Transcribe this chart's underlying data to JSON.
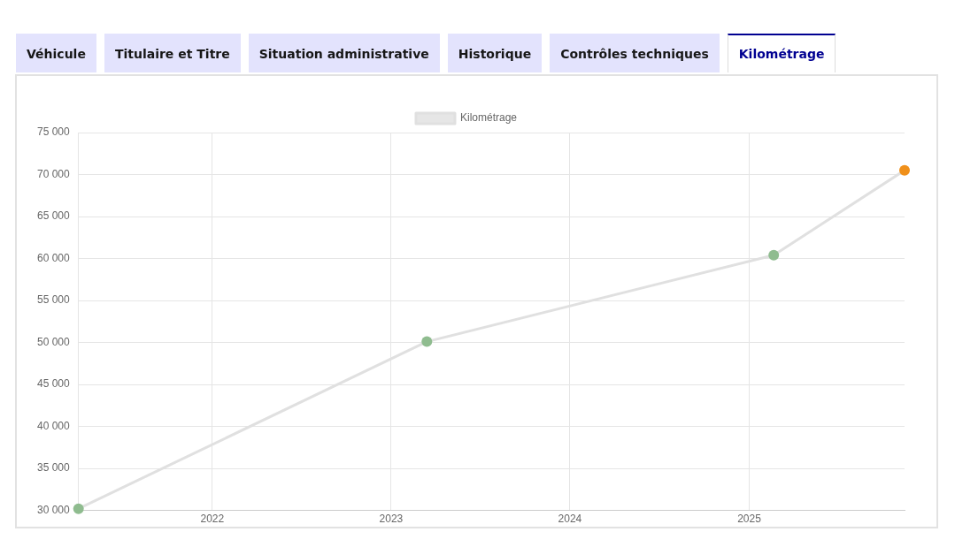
{
  "chart_data": {
    "type": "line",
    "annotations": [
      "Véhicule",
      "Titulaire et Titre",
      "Situation administrative",
      "Historique",
      "Contrôles techniques",
      "Kilométrage"
    ],
    "x": [
      "2021-04-03",
      "2023-03-15",
      "2025-02-20",
      "2025-11-14"
    ],
    "series": [
      {
        "name": "Kilométrage",
        "color": "#e0e0e0",
        "colors": [
          "#8fbc8f",
          "#8fbc8f",
          "#8fbc8f",
          "#f0901a"
        ],
        "values": [
          30200,
          50100,
          60400,
          70500
        ]
      }
    ],
    "xlim": [
      "2021-04-03",
      "2025-11-14"
    ],
    "xticks": [
      "2022",
      "2023",
      "2024",
      "2025"
    ],
    "ylim": [
      30000,
      75000
    ],
    "yticks": [
      {
        "value": 30000,
        "label": "30 000"
      },
      {
        "value": 35000,
        "label": "35 000"
      },
      {
        "value": 40000,
        "label": "40 000"
      },
      {
        "value": 45000,
        "label": "45 000"
      },
      {
        "value": 50000,
        "label": "50 000"
      },
      {
        "value": 55000,
        "label": "55 000"
      },
      {
        "value": 60000,
        "label": "60 000"
      },
      {
        "value": 65000,
        "label": "65 000"
      },
      {
        "value": 70000,
        "label": "70 000"
      },
      {
        "value": 75000,
        "label": "75 000"
      }
    ],
    "grid": true,
    "legend": "top",
    "marker": "circle",
    "line_style": "solid"
  }
}
